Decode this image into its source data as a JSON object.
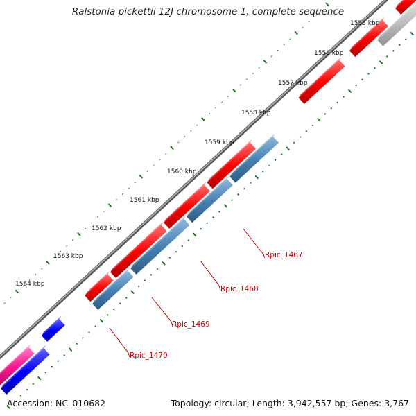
{
  "title": "Ralstonia pickettii 12J chromosome 1, complete sequence",
  "footer": {
    "accession": "Accession: NC_010682",
    "summary": "Topology: circular; Length: 3,942,557 bp; Genes: 3,767"
  },
  "colors": {
    "backbone": "#808080",
    "forward_gene": "#ff0000",
    "reverse_gene": "#4682b4",
    "other_forward": "#0000ff",
    "other_pink": "#ff1493",
    "pseudo_gene": "#c0c0c0",
    "tick": "#1a7a1a",
    "label": "#cc0000"
  },
  "scale": {
    "unit": "kbp",
    "labels": [
      "1555 kbp",
      "1556 kbp",
      "1557 kbp",
      "1558 kbp",
      "1559 kbp",
      "1560 kbp",
      "1561 kbp",
      "1562 kbp",
      "1563 kbp",
      "1564 kbp"
    ]
  },
  "gene_labels": [
    "Rpic_1467",
    "Rpic_1468",
    "Rpic_1469",
    "Rpic_1470"
  ]
}
